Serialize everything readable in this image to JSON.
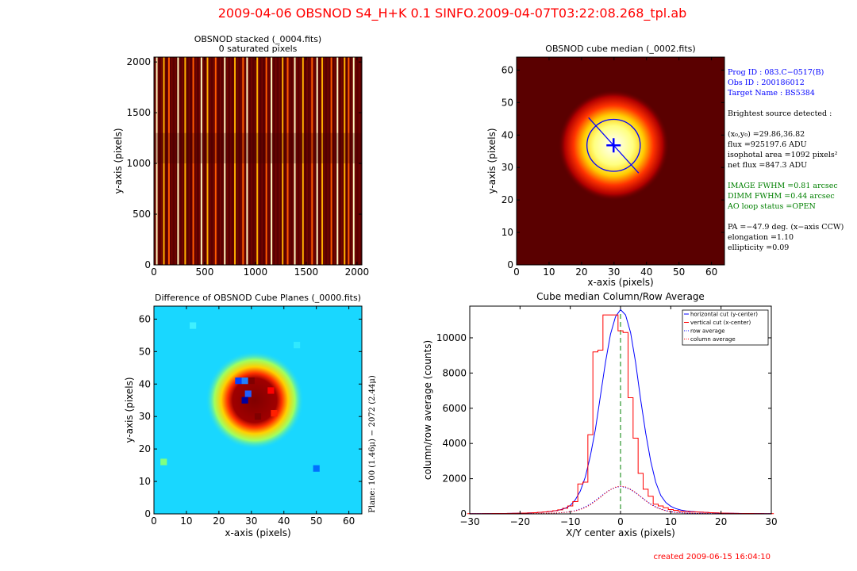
{
  "suptitle": "2009-04-06   OBSNOD   S4_H+K   0.1     SINFO.2009-04-07T03:22:08.268_tpl.ab",
  "footer": "created   2009-06-15    16:04:10",
  "colors": {
    "title_red": "#ff0000",
    "info_blue": "#0000ff",
    "info_green": "#008000",
    "ink": "#000000"
  },
  "info": {
    "prog_id": "Prog ID : 083.C−0517(B)",
    "obs_id": "Obs ID : 200186012",
    "target": "Target Name : BS5384",
    "brightest": "Brightest source detected :",
    "xy0": "(x₀,y₀) =29.86,36.82",
    "flux": "flux =925197.6 ADU",
    "iso_area": "isophotal area =1092 pixels²",
    "net_flux": "net flux =847.3 ADU",
    "image_fwhm": "IMAGE FWHM =0.81 arcsec",
    "dimm_fwhm": "DIMM  FWHM =0.44 arcsec",
    "ao_loop": "AO loop status =OPEN",
    "pa": "PA =−47.9 deg. (x−axis CCW)",
    "elongation": "elongation =1.10",
    "ellipticity": "ellipticity =0.09"
  },
  "chart_data": [
    {
      "type": "heatmap",
      "title": "OBSNOD stacked (_0004.fits)",
      "subtitle": "0 saturated pixels",
      "xlabel": "",
      "ylabel": "y-axis (pixels)",
      "xlim": [
        0,
        2048
      ],
      "ylim": [
        0,
        2048
      ],
      "xticks": [
        "0",
        "500",
        "1000",
        "1500",
        "2000"
      ],
      "yticks": [
        "0",
        "500",
        "1000",
        "1500",
        "2000"
      ],
      "bright_columns": [
        20,
        90,
        140,
        230,
        300,
        380,
        460,
        520,
        600,
        690,
        790,
        870,
        910,
        1010,
        1100,
        1150,
        1260,
        1310,
        1380,
        1460,
        1550,
        1600,
        1650,
        1740,
        1800,
        1870,
        1910,
        1960
      ],
      "cmap": "hot"
    },
    {
      "type": "heatmap",
      "title": "OBSNOD cube median (_0002.fits)",
      "xlabel": "x-axis (pixels)",
      "ylabel": "y-axis (pixels)",
      "xlim": [
        0,
        64
      ],
      "ylim": [
        0,
        64
      ],
      "xticks": [
        "0",
        "10",
        "20",
        "30",
        "40",
        "50",
        "60"
      ],
      "yticks": [
        "0",
        "10",
        "20",
        "30",
        "40",
        "50",
        "60"
      ],
      "source_x": 29.86,
      "source_y": 36.82,
      "ellipse_rx": 8.2,
      "ellipse_ry": 8.0,
      "pa_deg": -47.9,
      "cmap": "hot"
    },
    {
      "type": "heatmap",
      "title": "Difference of OBSNOD Cube Planes (_0000.fits)",
      "xlabel": "x-axis (pixels)",
      "ylabel": "y-axis (pixels)",
      "side_label": "Plane: 100 (1.46μ) − 2072 (2.44μ)",
      "xlim": [
        0,
        64
      ],
      "ylim": [
        0,
        64
      ],
      "xticks": [
        "0",
        "10",
        "20",
        "30",
        "40",
        "50",
        "60"
      ],
      "yticks": [
        "0",
        "10",
        "20",
        "30",
        "40",
        "50",
        "60"
      ],
      "cmap": "jet"
    },
    {
      "type": "line",
      "title": "Cube median Column/Row Average",
      "xlabel": "X/Y center axis (pixels)",
      "ylabel": "column/row average (counts)",
      "xlim": [
        -30,
        30
      ],
      "ylim": [
        0,
        11800
      ],
      "xticks": [
        -30,
        -20,
        -10,
        0,
        10,
        20,
        30
      ],
      "yticks": [
        0,
        2000,
        4000,
        6000,
        8000,
        10000
      ],
      "x": [
        -30,
        -29,
        -28,
        -27,
        -26,
        -25,
        -24,
        -23,
        -22,
        -21,
        -20,
        -19,
        -18,
        -17,
        -16,
        -15,
        -14,
        -13,
        -12,
        -11,
        -10,
        -9,
        -8,
        -7,
        -6,
        -5,
        -4,
        -3,
        -2,
        -1,
        0,
        1,
        2,
        3,
        4,
        5,
        6,
        7,
        8,
        9,
        10,
        11,
        12,
        13,
        14,
        15,
        16,
        17,
        18,
        19,
        20,
        21,
        22,
        23,
        24,
        25,
        26,
        27,
        28,
        29,
        30
      ],
      "series": [
        {
          "name": "horizontal cut (y-center)",
          "color": "#0000ff",
          "style": "solid",
          "values": [
            10,
            12,
            14,
            16,
            18,
            20,
            22,
            25,
            28,
            32,
            38,
            45,
            55,
            70,
            90,
            110,
            140,
            180,
            230,
            320,
            480,
            800,
            1300,
            2100,
            3300,
            4800,
            6700,
            8600,
            10200,
            11200,
            11600,
            11300,
            10300,
            8600,
            6500,
            4600,
            3000,
            1800,
            1050,
            650,
            430,
            300,
            220,
            170,
            140,
            120,
            100,
            85,
            70,
            55,
            45,
            38,
            32,
            28,
            25,
            22,
            20,
            18,
            16,
            14,
            12
          ]
        },
        {
          "name": "vertical cut (x-center)",
          "color": "#ff0000",
          "style": "step",
          "values": [
            10,
            12,
            14,
            16,
            18,
            20,
            22,
            25,
            28,
            32,
            38,
            45,
            55,
            70,
            90,
            110,
            140,
            180,
            230,
            320,
            450,
            700,
            1700,
            1800,
            4500,
            9200,
            9300,
            11300,
            11300,
            11300,
            10400,
            10300,
            6600,
            4300,
            2300,
            1400,
            1000,
            550,
            450,
            350,
            250,
            200,
            160,
            140,
            120,
            110,
            100,
            85,
            70,
            55,
            45,
            38,
            32,
            28,
            25,
            22,
            20,
            18,
            16,
            14,
            12
          ]
        },
        {
          "name": "row average",
          "color": "#0000ff",
          "style": "dotted",
          "values": [
            5,
            5,
            6,
            6,
            7,
            8,
            9,
            10,
            11,
            12,
            14,
            16,
            18,
            22,
            27,
            32,
            40,
            50,
            65,
            90,
            130,
            190,
            280,
            400,
            560,
            760,
            980,
            1200,
            1380,
            1500,
            1560,
            1500,
            1380,
            1200,
            980,
            760,
            560,
            400,
            280,
            190,
            130,
            90,
            65,
            50,
            40,
            32,
            27,
            22,
            18,
            16,
            14,
            12,
            11,
            10,
            9,
            8,
            7,
            6,
            6,
            5,
            5
          ]
        },
        {
          "name": "column average",
          "color": "#ff0000",
          "style": "dotted",
          "values": [
            5,
            5,
            6,
            6,
            7,
            8,
            9,
            10,
            11,
            12,
            14,
            16,
            18,
            22,
            27,
            32,
            40,
            50,
            65,
            85,
            120,
            170,
            250,
            360,
            520,
            720,
            940,
            1180,
            1380,
            1520,
            1580,
            1530,
            1400,
            1210,
            980,
            750,
            540,
            380,
            260,
            180,
            120,
            85,
            65,
            50,
            40,
            32,
            27,
            22,
            18,
            16,
            14,
            12,
            11,
            10,
            9,
            8,
            7,
            6,
            6,
            5,
            5
          ]
        }
      ],
      "legend": "top-right",
      "center_line": {
        "x": 0,
        "color": "#008000",
        "style": "dashed"
      }
    }
  ]
}
